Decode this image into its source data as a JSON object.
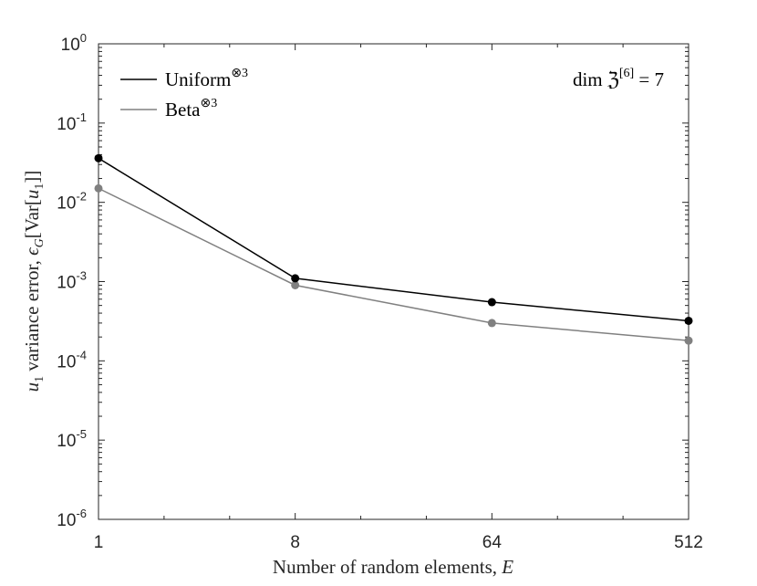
{
  "chart_data": {
    "type": "line",
    "xscale": "log2",
    "yscale": "log10",
    "x": [
      1,
      8,
      64,
      512
    ],
    "xticks": [
      "1",
      "8",
      "64",
      "512"
    ],
    "yticks": [
      {
        "base": "10",
        "exp": "0"
      },
      {
        "base": "10",
        "exp": "-1"
      },
      {
        "base": "10",
        "exp": "-2"
      },
      {
        "base": "10",
        "exp": "-3"
      },
      {
        "base": "10",
        "exp": "-4"
      },
      {
        "base": "10",
        "exp": "-5"
      },
      {
        "base": "10",
        "exp": "-6"
      }
    ],
    "xlim": [
      1,
      512
    ],
    "ylim": [
      1e-06,
      1
    ],
    "xlabel": "Number of random elements, E",
    "ylabel": "u1 variance error, ϵG[Var[u1]]",
    "annotation": "dim ℨ[6] = 7",
    "legend_position": "top-left",
    "grid": false,
    "series": [
      {
        "name": "Uniform⊗3",
        "color": "#000000",
        "values": [
          0.036,
          0.0011,
          0.00055,
          0.00032
        ]
      },
      {
        "name": "Beta⊗3",
        "color": "#808080",
        "values": [
          0.015,
          0.0009,
          0.0003,
          0.00018
        ]
      }
    ]
  }
}
